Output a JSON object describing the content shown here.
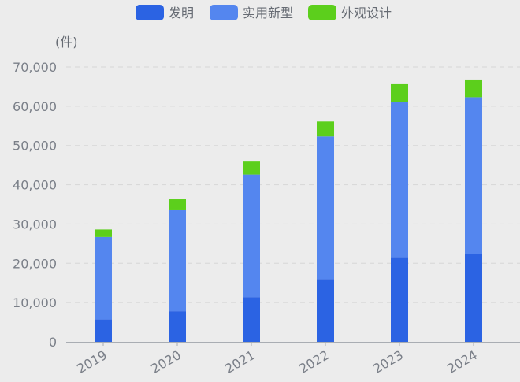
{
  "chart_data": {
    "type": "bar",
    "stacked": true,
    "unit_label": "(件)",
    "categories": [
      "2019",
      "2020",
      "2021",
      "2022",
      "2023",
      "2024"
    ],
    "series": [
      {
        "name": "发明",
        "color": "#2b63e3",
        "values": [
          5700,
          7800,
          11400,
          16000,
          21600,
          22300
        ]
      },
      {
        "name": "实用新型",
        "color": "#5486ef",
        "values": [
          21000,
          25900,
          31200,
          36300,
          39500,
          40000
        ]
      },
      {
        "name": "外观设计",
        "color": "#5ccf1c",
        "values": [
          1900,
          2600,
          3300,
          3800,
          4500,
          4500
        ]
      }
    ],
    "ylim": [
      0,
      70000
    ],
    "yticks": [
      "0",
      "10,000",
      "20,000",
      "30,000",
      "40,000",
      "50,000",
      "60,000",
      "70,000"
    ],
    "grid": true,
    "legend_position": "top-center"
  }
}
